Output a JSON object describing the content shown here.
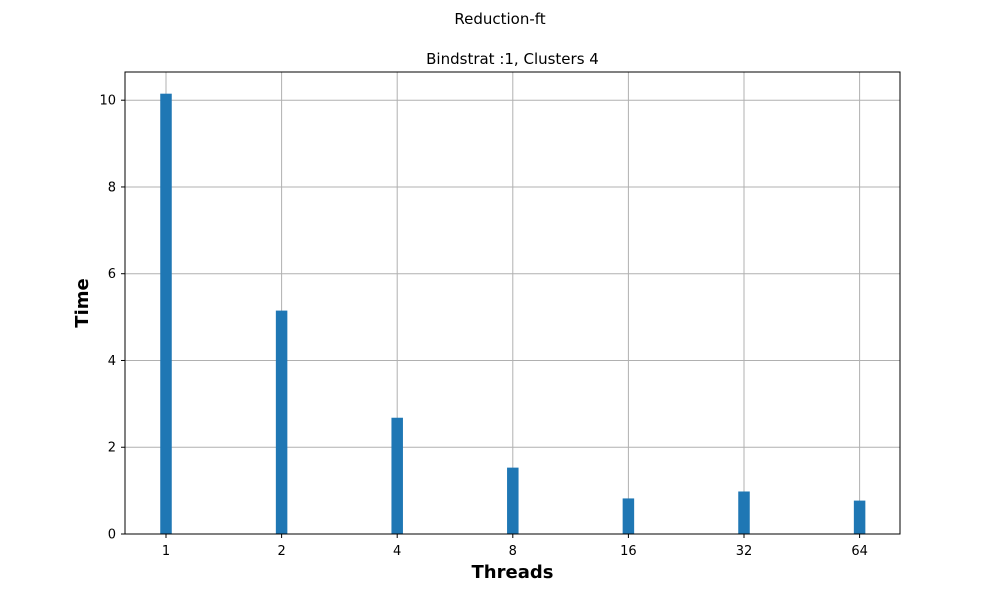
{
  "figure": {
    "suptitle": "Reduction-ft"
  },
  "chart_data": {
    "type": "bar",
    "title": "Bindstrat :1, Clusters 4",
    "xlabel": "Threads",
    "ylabel": "Time",
    "categories": [
      "1",
      "2",
      "4",
      "8",
      "16",
      "32",
      "64"
    ],
    "values": [
      10.15,
      5.15,
      2.68,
      1.53,
      0.82,
      0.98,
      0.77
    ],
    "ylim": [
      0,
      10.65
    ],
    "yticks": [
      0,
      2,
      4,
      6,
      8,
      10
    ],
    "grid": true,
    "bar_color": "#1f77b4",
    "grid_color": "#b0b0b0"
  }
}
